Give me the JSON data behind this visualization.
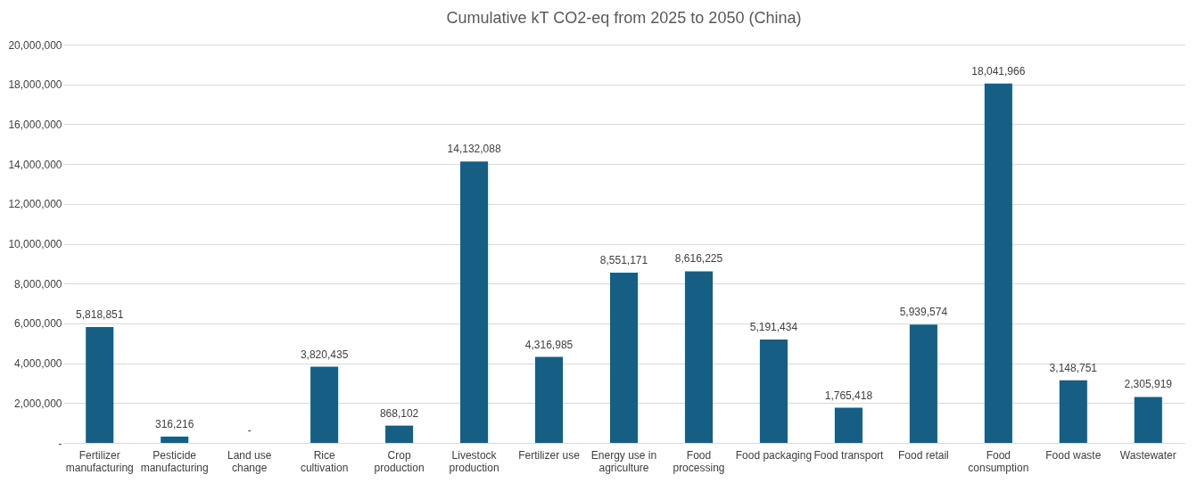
{
  "chart_data": {
    "type": "bar",
    "title": "Cumulative kT CO2-eq from 2025 to 2050 (China)",
    "categories": [
      "Fertilizer manufacturing",
      "Pesticide manufacturing",
      "Land use change",
      "Rice cultivation",
      "Crop production",
      "Livestock production",
      "Fertilizer use",
      "Energy use in agriculture",
      "Food processing",
      "Food packaging",
      "Food transport",
      "Food retail",
      "Food consumption",
      "Food waste",
      "Wastewater"
    ],
    "values": [
      5818851,
      316216,
      0,
      3820435,
      868102,
      14132088,
      4316985,
      8551171,
      8616225,
      5191434,
      1765418,
      5939574,
      18041966,
      3148751,
      2305919
    ],
    "value_labels": [
      "5,818,851",
      "316,216",
      "-",
      "3,820,435",
      "868,102",
      "14,132,088",
      "4,316,985",
      "8,551,171",
      "8,616,225",
      "5,191,434",
      "1,765,418",
      "5,939,574",
      "18,041,966",
      "3,148,751",
      "2,305,919"
    ],
    "color": "#165e83",
    "ylim": [
      0,
      20000000
    ],
    "yticks": [
      {
        "value": 0,
        "label": "-"
      },
      {
        "value": 2000000,
        "label": "2,000,000"
      },
      {
        "value": 4000000,
        "label": "4,000,000"
      },
      {
        "value": 6000000,
        "label": "6,000,000"
      },
      {
        "value": 8000000,
        "label": "8,000,000"
      },
      {
        "value": 10000000,
        "label": "10,000,000"
      },
      {
        "value": 12000000,
        "label": "12,000,000"
      },
      {
        "value": 14000000,
        "label": "14,000,000"
      },
      {
        "value": 16000000,
        "label": "16,000,000"
      },
      {
        "value": 18000000,
        "label": "18,000,000"
      },
      {
        "value": 20000000,
        "label": "20,000,000"
      }
    ],
    "grid": "y"
  }
}
